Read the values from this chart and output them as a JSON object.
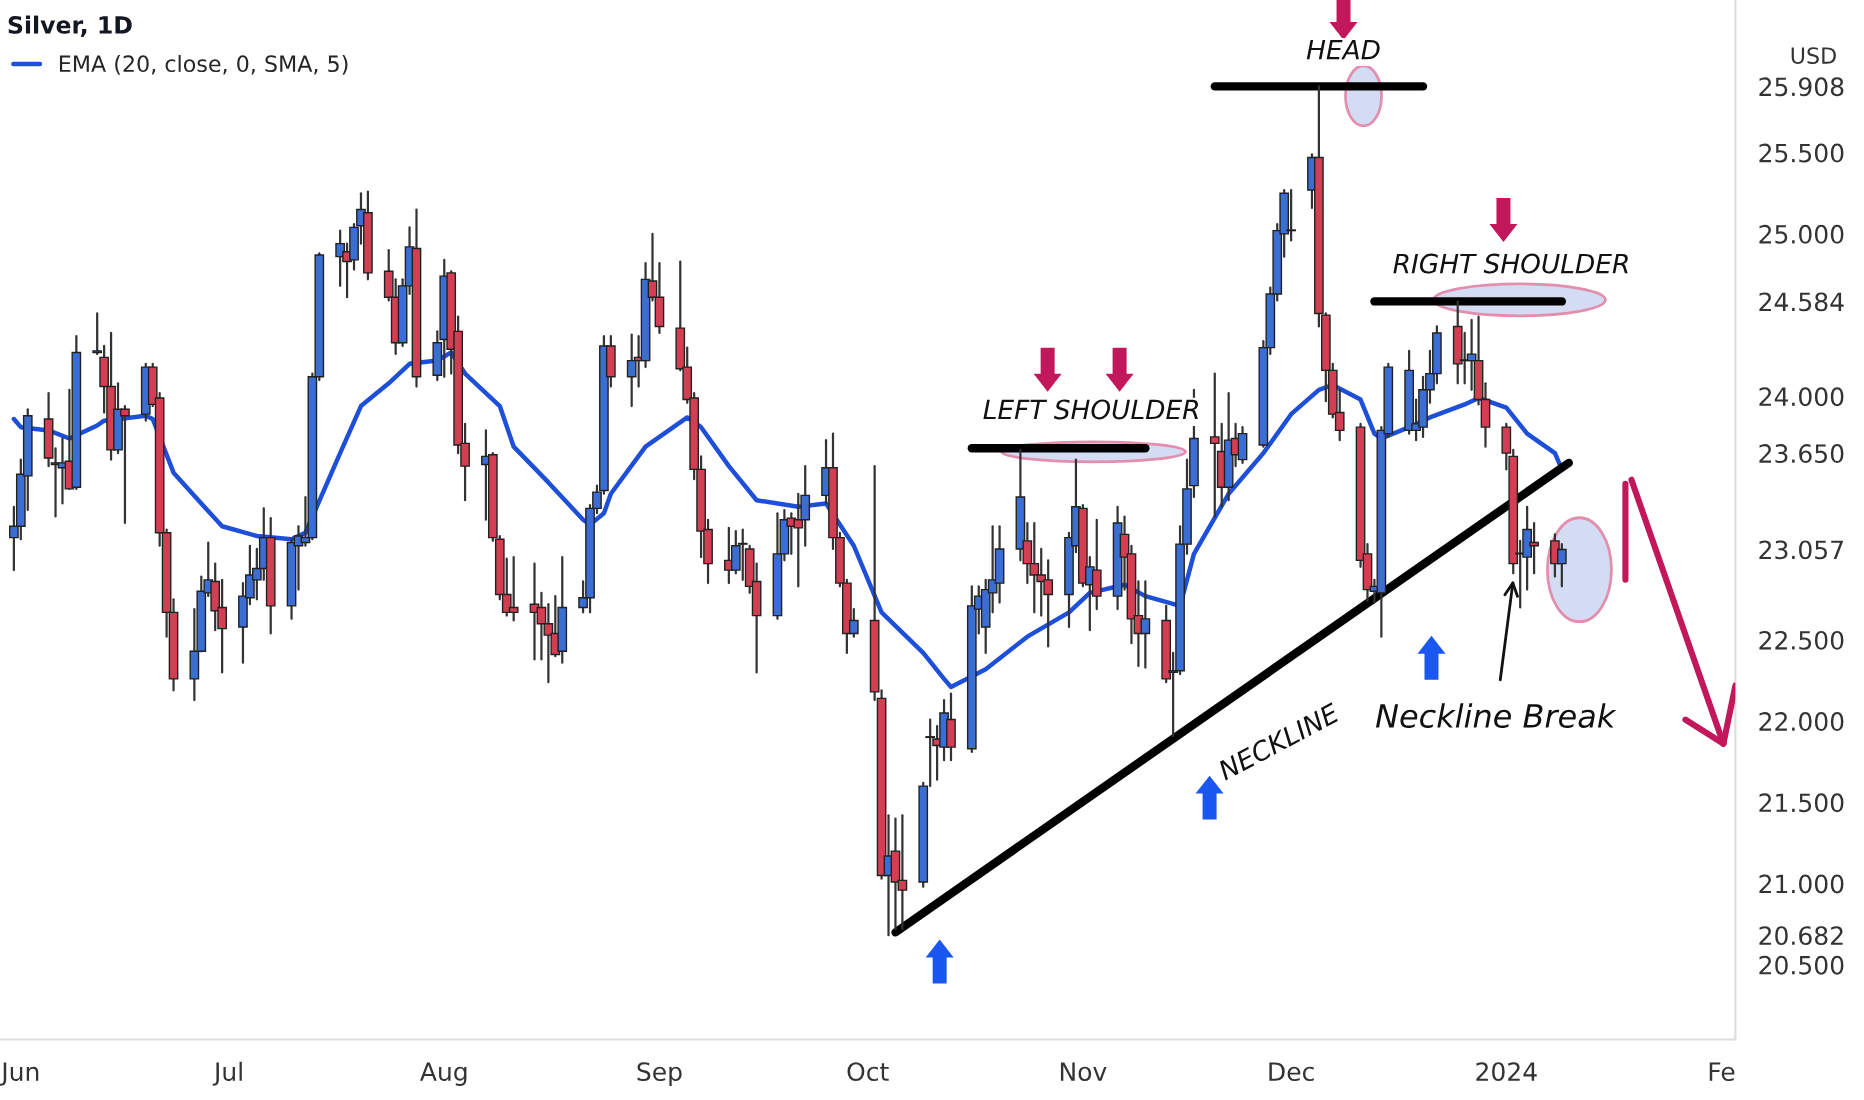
{
  "chart_data": {
    "type": "candlestick",
    "title": "Silver, 1D",
    "ylabel": "USD",
    "x": [
      "2023-05-31",
      "2023-06-01",
      "2023-06-02",
      "2023-06-05",
      "2023-06-06",
      "2023-06-07",
      "2023-06-08",
      "2023-06-09",
      "2023-06-12",
      "2023-06-13",
      "2023-06-14",
      "2023-06-15",
      "2023-06-16",
      "2023-06-19",
      "2023-06-20",
      "2023-06-21",
      "2023-06-22",
      "2023-06-23",
      "2023-06-26",
      "2023-06-27",
      "2023-06-28",
      "2023-06-29",
      "2023-06-30",
      "2023-07-03",
      "2023-07-04",
      "2023-07-05",
      "2023-07-06",
      "2023-07-07",
      "2023-07-10",
      "2023-07-11",
      "2023-07-12",
      "2023-07-13",
      "2023-07-14",
      "2023-07-17",
      "2023-07-18",
      "2023-07-19",
      "2023-07-20",
      "2023-07-21",
      "2023-07-24",
      "2023-07-25",
      "2023-07-26",
      "2023-07-27",
      "2023-07-28",
      "2023-07-31",
      "2023-08-01",
      "2023-08-02",
      "2023-08-03",
      "2023-08-04",
      "2023-08-07",
      "2023-08-08",
      "2023-08-09",
      "2023-08-10",
      "2023-08-11",
      "2023-08-14",
      "2023-08-15",
      "2023-08-16",
      "2023-08-17",
      "2023-08-18",
      "2023-08-21",
      "2023-08-22",
      "2023-08-23",
      "2023-08-24",
      "2023-08-25",
      "2023-08-28",
      "2023-08-29",
      "2023-08-30",
      "2023-08-31",
      "2023-09-01",
      "2023-09-04",
      "2023-09-05",
      "2023-09-06",
      "2023-09-07",
      "2023-09-08",
      "2023-09-11",
      "2023-09-12",
      "2023-09-13",
      "2023-09-14",
      "2023-09-15",
      "2023-09-18",
      "2023-09-19",
      "2023-09-20",
      "2023-09-21",
      "2023-09-22",
      "2023-09-25",
      "2023-09-26",
      "2023-09-27",
      "2023-09-28",
      "2023-09-29",
      "2023-10-02",
      "2023-10-03",
      "2023-10-04",
      "2023-10-05",
      "2023-10-06",
      "2023-10-09",
      "2023-10-10",
      "2023-10-11",
      "2023-10-12",
      "2023-10-13",
      "2023-10-16",
      "2023-10-17",
      "2023-10-18",
      "2023-10-19",
      "2023-10-20",
      "2023-10-23",
      "2023-10-24",
      "2023-10-25",
      "2023-10-26",
      "2023-10-27",
      "2023-10-30",
      "2023-10-31",
      "2023-11-01",
      "2023-11-02",
      "2023-11-03",
      "2023-11-06",
      "2023-11-07",
      "2023-11-08",
      "2023-11-09",
      "2023-11-10",
      "2023-11-13",
      "2023-11-14",
      "2023-11-15",
      "2023-11-16",
      "2023-11-17",
      "2023-11-20",
      "2023-11-21",
      "2023-11-22",
      "2023-11-23",
      "2023-11-24",
      "2023-11-27",
      "2023-11-28",
      "2023-11-29",
      "2023-11-30",
      "2023-12-01",
      "2023-12-04",
      "2023-12-05",
      "2023-12-06",
      "2023-12-07",
      "2023-12-08",
      "2023-12-11",
      "2023-12-12",
      "2023-12-13",
      "2023-12-14",
      "2023-12-15",
      "2023-12-18",
      "2023-12-19",
      "2023-12-20",
      "2023-12-21",
      "2023-12-22",
      "2023-12-25",
      "2023-12-26",
      "2023-12-27",
      "2023-12-28",
      "2023-12-29",
      "2024-01-01",
      "2024-01-02",
      "2024-01-03",
      "2024-01-04",
      "2024-01-05",
      "2024-01-08",
      "2024-01-09"
    ],
    "colors": [
      "#3a6ed3",
      "#3a6ed3",
      "#3a6ed3",
      "#d23f52",
      "#d23f52",
      "#3a6ed3",
      "#d23f52",
      "#3a6ed3",
      "#3a6ed3",
      "#d23f52",
      "#d23f52",
      "#3a6ed3",
      "#d23f52",
      "#3a6ed3",
      "#d23f52",
      "#d23f52",
      "#d23f52",
      "#d23f52",
      "#3a6ed3",
      "#3a6ed3",
      "#3a6ed3",
      "#d23f52",
      "#d23f52",
      "#3a6ed3",
      "#3a6ed3",
      "#3a6ed3",
      "#3a6ed3",
      "#d23f52",
      "#3a6ed3",
      "#3a6ed3",
      "#3a6ed3",
      "#3a6ed3",
      "#3a6ed3",
      "#3a6ed3",
      "#d23f52",
      "#3a6ed3",
      "#3a6ed3",
      "#d23f52",
      "#d23f52",
      "#d23f52",
      "#3a6ed3",
      "#3a6ed3",
      "#d23f52",
      "#3a6ed3",
      "#3a6ed3",
      "#d23f52",
      "#d23f52",
      "#d23f52",
      "#3a6ed3",
      "#d23f52",
      "#d23f52",
      "#d23f52",
      "#d23f52",
      "#d23f52",
      "#d23f52",
      "#d23f52",
      "#d23f52",
      "#3a6ed3",
      "#3a6ed3",
      "#3a6ed3",
      "#3a6ed3",
      "#3a6ed3",
      "#d23f52",
      "#3a6ed3",
      "#d23f52",
      "#3a6ed3",
      "#d23f52",
      "#d23f52",
      "#d23f52",
      "#d23f52",
      "#d23f52",
      "#d23f52",
      "#d23f52",
      "#d23f52",
      "#3a6ed3",
      "#3a6ed3",
      "#d23f52",
      "#d23f52",
      "#3a6ed3",
      "#3a6ed3",
      "#d23f52",
      "#d23f52",
      "#3a6ed3",
      "#3a6ed3",
      "#d23f52",
      "#d23f52",
      "#d23f52",
      "#3a6ed3",
      "#d23f52",
      "#d23f52",
      "#3a6ed3",
      "#d23f52",
      "#d23f52",
      "#3a6ed3",
      "#3a6ed3",
      "#d23f52",
      "#3a6ed3",
      "#d23f52",
      "#3a6ed3",
      "#3a6ed3",
      "#3a6ed3",
      "#3a6ed3",
      "#3a6ed3",
      "#3a6ed3",
      "#d23f52",
      "#d23f52",
      "#d23f52",
      "#d23f52",
      "#3a6ed3",
      "#3a6ed3",
      "#d23f52",
      "#3a6ed3",
      "#d23f52",
      "#3a6ed3",
      "#d23f52",
      "#d23f52",
      "#d23f52",
      "#3a6ed3",
      "#d23f52",
      "#3a6ed3",
      "#3a6ed3",
      "#3a6ed3",
      "#3a6ed3",
      "#d23f52",
      "#d23f52",
      "#3a6ed3",
      "#d23f52",
      "#3a6ed3",
      "#3a6ed3",
      "#3a6ed3",
      "#3a6ed3",
      "#3a6ed3",
      "#3a6ed3",
      "#3a6ed3",
      "#d23f52",
      "#d23f52",
      "#d23f52",
      "#d23f52",
      "#d23f52",
      "#d23f52",
      "#3a6ed3",
      "#3a6ed3",
      "#3a6ed3",
      "#3a6ed3",
      "#3a6ed3",
      "#3a6ed3",
      "#3a6ed3",
      "#3a6ed3",
      "#d23f52",
      "#3a6ed3",
      "#3a6ed3",
      "#d23f52",
      "#d23f52",
      "#d23f52",
      "#d23f52",
      "#3a6ed3",
      "#3a6ed3",
      "#d23f52",
      "#d23f52",
      "#3a6ed3"
    ],
    "ohlc": [
      [
        23.13,
        23.32,
        22.93,
        23.2
      ],
      [
        23.2,
        23.61,
        23.12,
        23.52
      ],
      [
        23.51,
        23.92,
        23.3,
        23.88
      ],
      [
        23.86,
        24.02,
        23.57,
        23.62
      ],
      [
        23.59,
        23.68,
        23.26,
        23.58
      ],
      [
        23.56,
        23.74,
        23.34,
        23.59
      ],
      [
        23.6,
        24.04,
        23.43,
        23.43
      ],
      [
        23.44,
        24.37,
        23.43,
        24.27
      ],
      [
        24.27,
        24.51,
        24.26,
        24.28
      ],
      [
        24.24,
        24.31,
        23.9,
        24.06
      ],
      [
        24.06,
        24.39,
        23.61,
        23.67
      ],
      [
        23.67,
        24.08,
        23.65,
        23.92
      ],
      [
        23.92,
        23.94,
        23.22,
        23.88
      ],
      [
        23.89,
        24.2,
        23.85,
        24.18
      ],
      [
        24.18,
        24.2,
        23.94,
        23.95
      ],
      [
        23.99,
        24.02,
        23.08,
        23.16
      ],
      [
        23.16,
        23.18,
        22.52,
        22.67
      ],
      [
        22.67,
        22.75,
        22.19,
        22.26
      ],
      [
        22.26,
        22.69,
        22.13,
        22.43
      ],
      [
        22.43,
        22.89,
        22.43,
        22.8
      ],
      [
        22.79,
        23.1,
        22.77,
        22.87
      ],
      [
        22.86,
        22.97,
        22.56,
        22.68
      ],
      [
        22.7,
        22.87,
        22.3,
        22.57
      ],
      [
        22.58,
        22.85,
        22.36,
        22.77
      ],
      [
        22.76,
        23.08,
        22.72,
        22.9
      ],
      [
        22.87,
        23.06,
        22.75,
        22.94
      ],
      [
        22.94,
        23.31,
        22.87,
        23.13
      ],
      [
        23.13,
        23.25,
        22.54,
        22.71
      ],
      [
        22.71,
        23.12,
        22.63,
        23.1
      ],
      [
        23.08,
        23.2,
        22.81,
        23.14
      ],
      [
        23.1,
        23.38,
        23.08,
        23.13
      ],
      [
        23.13,
        24.14,
        23.12,
        24.12
      ],
      [
        24.12,
        24.88,
        24.1,
        24.87
      ],
      [
        24.86,
        25.02,
        24.68,
        24.94
      ],
      [
        24.89,
        24.94,
        24.61,
        24.83
      ],
      [
        24.84,
        25.06,
        24.78,
        25.04
      ],
      [
        25.05,
        25.25,
        24.94,
        25.15
      ],
      [
        25.13,
        25.26,
        24.72,
        24.76
      ],
      [
        24.77,
        24.9,
        24.59,
        24.61
      ],
      [
        24.61,
        24.72,
        24.26,
        24.33
      ],
      [
        24.33,
        24.72,
        24.31,
        24.68
      ],
      [
        24.68,
        25.04,
        24.63,
        24.92
      ],
      [
        24.91,
        25.15,
        24.06,
        24.12
      ],
      [
        24.13,
        24.4,
        24.1,
        24.33
      ],
      [
        24.35,
        24.84,
        24.12,
        24.74
      ],
      [
        24.76,
        24.77,
        24.14,
        24.29
      ],
      [
        24.4,
        24.49,
        23.65,
        23.7
      ],
      [
        23.71,
        23.83,
        23.36,
        23.57
      ],
      [
        23.58,
        23.79,
        23.24,
        23.63
      ],
      [
        23.64,
        23.65,
        23.11,
        23.13
      ],
      [
        23.12,
        23.14,
        22.75,
        22.78
      ],
      [
        22.78,
        23.0,
        22.65,
        22.67
      ],
      [
        22.7,
        23.01,
        22.62,
        22.67
      ],
      [
        22.72,
        22.97,
        22.38,
        22.67
      ],
      [
        22.7,
        22.79,
        22.38,
        22.6
      ],
      [
        22.6,
        22.72,
        22.24,
        22.53
      ],
      [
        22.54,
        22.77,
        22.4,
        22.41
      ],
      [
        22.43,
        23.01,
        22.36,
        22.7
      ],
      [
        22.7,
        22.86,
        22.67,
        22.76
      ],
      [
        22.76,
        23.33,
        22.67,
        23.31
      ],
      [
        23.31,
        23.45,
        23.28,
        23.41
      ],
      [
        23.42,
        24.37,
        23.4,
        24.31
      ],
      [
        24.31,
        24.37,
        24.06,
        24.12
      ],
      [
        24.12,
        24.38,
        23.94,
        24.22
      ],
      [
        24.24,
        24.37,
        24.06,
        24.22
      ],
      [
        24.22,
        24.82,
        24.18,
        24.72
      ],
      [
        24.71,
        25.0,
        24.59,
        24.61
      ],
      [
        24.61,
        24.82,
        24.39,
        24.43
      ],
      [
        24.42,
        24.83,
        24.16,
        24.17
      ],
      [
        24.18,
        24.3,
        23.96,
        23.98
      ],
      [
        23.99,
        24.02,
        23.49,
        23.55
      ],
      [
        23.55,
        23.63,
        23.01,
        23.17
      ],
      [
        23.18,
        23.24,
        22.85,
        22.97
      ],
      [
        22.99,
        23.19,
        22.85,
        22.93
      ],
      [
        22.93,
        23.17,
        22.91,
        23.08
      ],
      [
        23.09,
        23.18,
        22.87,
        23.09
      ],
      [
        23.06,
        23.08,
        22.79,
        22.83
      ],
      [
        22.86,
        22.97,
        22.3,
        22.65
      ],
      [
        22.65,
        23.28,
        22.63,
        23.03
      ],
      [
        23.03,
        23.3,
        22.99,
        23.24
      ],
      [
        23.25,
        23.28,
        23.03,
        23.2
      ],
      [
        23.24,
        23.4,
        22.83,
        23.19
      ],
      [
        23.24,
        23.57,
        23.08,
        23.39
      ],
      [
        23.39,
        23.73,
        23.34,
        23.56
      ],
      [
        23.56,
        23.77,
        23.06,
        23.13
      ],
      [
        23.13,
        23.16,
        22.83,
        22.85
      ],
      [
        22.85,
        22.87,
        22.42,
        22.54
      ],
      [
        22.54,
        22.69,
        22.52,
        22.62
      ],
      [
        22.62,
        23.57,
        22.13,
        22.18
      ],
      [
        22.14,
        22.19,
        21.03,
        21.05
      ],
      [
        21.05,
        21.42,
        20.682,
        21.17
      ],
      [
        21.2,
        21.4,
        20.72,
        21.01
      ],
      [
        21.02,
        21.42,
        20.72,
        20.96
      ],
      [
        21.01,
        21.62,
        20.98,
        21.6
      ],
      [
        21.9,
        22.01,
        21.6,
        21.9
      ],
      [
        21.89,
        21.97,
        21.64,
        21.85
      ],
      [
        21.84,
        22.13,
        21.76,
        22.05
      ],
      [
        22.01,
        22.17,
        21.76,
        21.84
      ],
      [
        21.83,
        22.83,
        21.81,
        22.71
      ],
      [
        22.69,
        22.83,
        22.54,
        22.77
      ],
      [
        22.58,
        22.87,
        22.42,
        22.81
      ],
      [
        22.79,
        23.2,
        22.67,
        22.87
      ],
      [
        22.85,
        23.2,
        22.73,
        23.06
      ],
      [
        23.06,
        23.67,
        22.99,
        23.38
      ],
      [
        23.11,
        23.22,
        22.85,
        22.97
      ],
      [
        22.97,
        23.22,
        22.67,
        22.9
      ],
      [
        22.9,
        23.06,
        22.65,
        22.86
      ],
      [
        22.87,
        22.99,
        22.46,
        22.78
      ],
      [
        22.78,
        23.16,
        22.58,
        23.13
      ],
      [
        23.08,
        23.61,
        23.04,
        23.32
      ],
      [
        23.31,
        23.33,
        22.83,
        22.85
      ],
      [
        22.84,
        23.01,
        22.56,
        22.95
      ],
      [
        22.93,
        23.24,
        22.69,
        22.77
      ],
      [
        22.77,
        23.32,
        22.69,
        23.22
      ],
      [
        23.15,
        23.26,
        22.81,
        23.01
      ],
      [
        23.03,
        23.08,
        22.48,
        22.63
      ],
      [
        22.65,
        22.86,
        22.34,
        22.54
      ],
      [
        22.54,
        22.86,
        22.33,
        22.63
      ],
      [
        22.62,
        22.71,
        22.24,
        22.26
      ],
      [
        22.3,
        22.42,
        21.91,
        22.31
      ],
      [
        22.31,
        23.2,
        22.29,
        23.09
      ],
      [
        23.09,
        23.61,
        23.03,
        23.43
      ],
      [
        23.45,
        24.04,
        23.38,
        23.74
      ],
      [
        23.75,
        24.14,
        23.26,
        23.71
      ],
      [
        23.66,
        23.83,
        23.32,
        23.44
      ],
      [
        23.44,
        24.02,
        23.36,
        23.73
      ],
      [
        23.74,
        23.83,
        23.57,
        23.64
      ],
      [
        23.61,
        23.81,
        23.59,
        23.77
      ],
      [
        23.7,
        24.34,
        23.69,
        24.3
      ],
      [
        24.3,
        24.67,
        24.26,
        24.63
      ],
      [
        24.63,
        25.06,
        24.59,
        25.02
      ],
      [
        25.0,
        25.27,
        24.86,
        25.25
      ],
      [
        25.02,
        25.27,
        24.96,
        25.02
      ],
      [
        25.27,
        25.49,
        25.16,
        25.47
      ],
      [
        25.47,
        25.908,
        24.43,
        24.51
      ],
      [
        24.5,
        24.51,
        23.97,
        24.16
      ],
      [
        24.16,
        24.2,
        23.87,
        23.89
      ],
      [
        23.9,
        24.04,
        23.73,
        23.79
      ],
      [
        23.81,
        23.83,
        22.95,
        22.99
      ],
      [
        23.03,
        23.09,
        22.74,
        22.81
      ],
      [
        22.8,
        22.87,
        22.73,
        22.83
      ],
      [
        22.79,
        23.81,
        22.52,
        23.79
      ],
      [
        23.77,
        24.2,
        23.75,
        24.18
      ],
      [
        23.79,
        24.28,
        23.77,
        24.16
      ],
      [
        23.79,
        23.98,
        23.73,
        23.83
      ],
      [
        23.81,
        24.12,
        23.75,
        24.04
      ],
      [
        24.04,
        24.28,
        23.96,
        24.14
      ],
      [
        24.14,
        24.43,
        24.08,
        24.39
      ],
      [
        24.43,
        24.584,
        24.08,
        24.2
      ],
      [
        24.22,
        24.39,
        24.08,
        24.22
      ],
      [
        24.22,
        24.47,
        24.04,
        24.26
      ],
      [
        24.22,
        24.49,
        23.95,
        23.98
      ],
      [
        23.98,
        24.08,
        23.69,
        23.81
      ],
      [
        23.81,
        23.83,
        23.55,
        23.65
      ],
      [
        23.63,
        23.67,
        22.91,
        22.97
      ],
      [
        23.03,
        23.11,
        22.7,
        23.03
      ],
      [
        23.01,
        23.32,
        22.81,
        23.18
      ],
      [
        23.1,
        23.22,
        22.91,
        23.08
      ],
      [
        23.11,
        23.15,
        22.89,
        22.97
      ],
      [
        22.97,
        23.09,
        22.83,
        23.057
      ]
    ],
    "series": [
      {
        "type": "line",
        "name": "EMA (20, close, 0, SMA, 5)",
        "color": "#1d4fd8",
        "x": [
          "2023-05-31",
          "2023-06-01",
          "2023-06-05",
          "2023-06-08",
          "2023-06-12",
          "2023-06-13",
          "2023-06-19",
          "2023-06-20",
          "2023-06-23",
          "2023-06-27",
          "2023-06-30",
          "2023-07-05",
          "2023-07-10",
          "2023-07-12",
          "2023-07-17",
          "2023-07-20",
          "2023-07-24",
          "2023-07-27",
          "2023-07-31",
          "2023-08-02",
          "2023-08-04",
          "2023-08-09",
          "2023-08-11",
          "2023-08-16",
          "2023-08-21",
          "2023-08-22",
          "2023-08-24",
          "2023-08-25",
          "2023-08-30",
          "2023-09-05",
          "2023-09-07",
          "2023-09-11",
          "2023-09-15",
          "2023-09-21",
          "2023-09-25",
          "2023-09-29",
          "2023-10-03",
          "2023-10-09",
          "2023-10-12",
          "2023-10-13",
          "2023-10-18",
          "2023-10-24",
          "2023-10-30",
          "2023-11-02",
          "2023-11-07",
          "2023-11-10",
          "2023-11-15",
          "2023-11-17",
          "2023-11-22",
          "2023-11-27",
          "2023-12-01",
          "2023-12-05",
          "2023-12-07",
          "2023-12-11",
          "2023-12-13",
          "2023-12-14",
          "2023-12-18",
          "2023-12-21",
          "2023-12-26",
          "2023-12-28",
          "2024-01-01",
          "2024-01-04",
          "2024-01-08",
          "2024-01-09"
        ],
        "values": [
          23.86,
          23.81,
          23.79,
          23.74,
          23.82,
          23.85,
          23.88,
          23.86,
          23.53,
          23.34,
          23.2,
          23.14,
          23.12,
          23.16,
          23.65,
          23.94,
          24.08,
          24.2,
          24.22,
          24.27,
          24.14,
          23.94,
          23.69,
          23.47,
          23.24,
          23.21,
          23.28,
          23.4,
          23.69,
          23.87,
          23.81,
          23.57,
          23.36,
          23.32,
          23.34,
          23.08,
          22.67,
          22.42,
          22.26,
          22.21,
          22.32,
          22.52,
          22.67,
          22.79,
          22.84,
          22.77,
          22.71,
          23.03,
          23.4,
          23.65,
          23.89,
          24.04,
          24.07,
          23.98,
          23.77,
          23.74,
          23.81,
          23.87,
          23.95,
          23.99,
          23.93,
          23.77,
          23.65,
          23.55
        ]
      },
      {
        "type": "line",
        "color": "#000000",
        "x": [
          "2023-10-05",
          "2024-01-10"
        ],
        "values": [
          20.7,
          23.59
        ]
      },
      {
        "type": "line",
        "color": "#000000",
        "x": [
          "2023-10-16",
          "2023-11-10"
        ],
        "values": [
          23.68,
          23.68
        ]
      },
      {
        "type": "line",
        "color": "#000000",
        "x": [
          "2023-11-20",
          "2023-12-20"
        ],
        "values": [
          25.908,
          25.908
        ]
      },
      {
        "type": "line",
        "color": "#000000",
        "x": [
          "2023-12-13",
          "2024-01-09"
        ],
        "values": [
          24.584,
          24.584
        ]
      }
    ],
    "annotations": [
      "HEAD",
      "LEFT SHOULDER",
      "RIGHT SHOULDER",
      "NECKLINE",
      {
        "text": "Neckline Break",
        "x": "2024-01-02",
        "y": 22.87
      }
    ],
    "xlim": [
      "2023-05-29",
      "2024-02-03"
    ],
    "xticks": [
      {
        "value": "2023-06-01",
        "label": "Jun"
      },
      {
        "value": "2023-07-01",
        "label": "Jul"
      },
      {
        "value": "2023-08-01",
        "label": "Aug"
      },
      {
        "value": "2023-09-01",
        "label": "Sep"
      },
      {
        "value": "2023-10-01",
        "label": "Oct"
      },
      {
        "value": "2023-11-01",
        "label": "Nov"
      },
      {
        "value": "2023-12-01",
        "label": "Dec"
      },
      {
        "value": "2024-01-01",
        "label": "2024"
      },
      {
        "value": "2024-02-01",
        "label": "Fe"
      }
    ],
    "ylim": [
      20.04,
      26.44
    ],
    "yticks": [
      25.908,
      {
        "value": 25.5,
        "label": "25.500"
      },
      {
        "value": 25,
        "label": "25.000"
      },
      24.584,
      {
        "value": 24,
        "label": "24.000"
      },
      {
        "value": 23.65,
        "label": "23.650"
      },
      23.057,
      {
        "value": 22.5,
        "label": "22.500"
      },
      {
        "value": 22,
        "label": "22.000"
      },
      {
        "value": 21.5,
        "label": "21.500"
      },
      {
        "value": 21,
        "label": "21.000"
      },
      20.682,
      {
        "value": 20.5,
        "label": "20.500"
      }
    ],
    "legend": "top left"
  }
}
